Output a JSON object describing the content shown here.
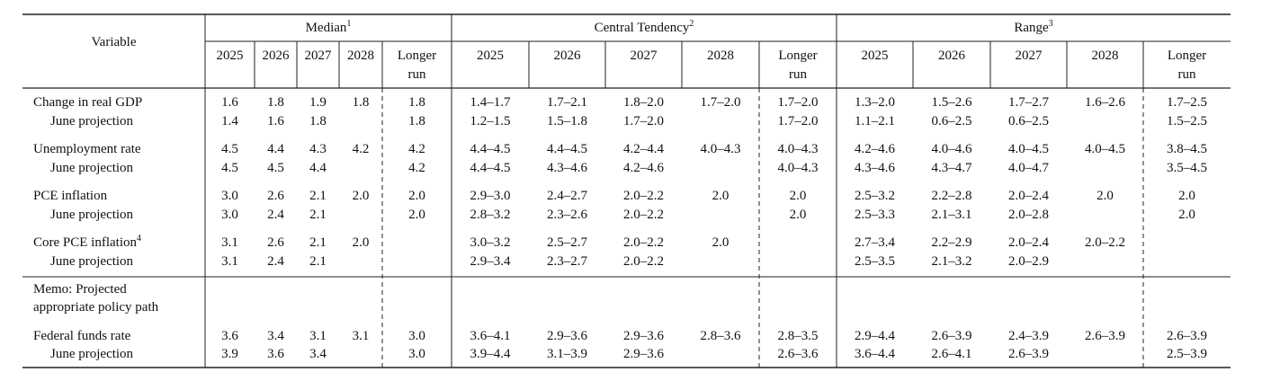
{
  "header": {
    "variable": "Variable",
    "groups": [
      {
        "label": "Median",
        "note": "1"
      },
      {
        "label": "Central Tendency",
        "note": "2"
      },
      {
        "label": "Range",
        "note": "3"
      }
    ],
    "years": [
      "2025",
      "2026",
      "2027",
      "2028"
    ],
    "longer_run": "Longer run"
  },
  "rows": [
    {
      "label": "Change in real GDP",
      "values": [
        "1.6",
        "1.8",
        "1.9",
        "1.8",
        "1.8",
        "1.4–1.7",
        "1.7–2.1",
        "1.8–2.0",
        "1.7–2.0",
        "1.7–2.0",
        "1.3–2.0",
        "1.5–2.6",
        "1.7–2.7",
        "1.6–2.6",
        "1.7–2.5"
      ]
    },
    {
      "label": "June projection",
      "values": [
        "1.4",
        "1.6",
        "1.8",
        null,
        "1.8",
        "1.2–1.5",
        "1.5–1.8",
        "1.7–2.0",
        null,
        "1.7–2.0",
        "1.1–2.1",
        "0.6–2.5",
        "0.6–2.5",
        null,
        "1.5–2.5"
      ]
    },
    {
      "label": "Unemployment rate",
      "values": [
        "4.5",
        "4.4",
        "4.3",
        "4.2",
        "4.2",
        "4.4–4.5",
        "4.4–4.5",
        "4.2–4.4",
        "4.0–4.3",
        "4.0–4.3",
        "4.2–4.6",
        "4.0–4.6",
        "4.0–4.5",
        "4.0–4.5",
        "3.8–4.5"
      ]
    },
    {
      "label": "June projection",
      "values": [
        "4.5",
        "4.5",
        "4.4",
        null,
        "4.2",
        "4.4–4.5",
        "4.3–4.6",
        "4.2–4.6",
        null,
        "4.0–4.3",
        "4.3–4.6",
        "4.3–4.7",
        "4.0–4.7",
        null,
        "3.5–4.5"
      ]
    },
    {
      "label": "PCE inflation",
      "values": [
        "3.0",
        "2.6",
        "2.1",
        "2.0",
        "2.0",
        "2.9–3.0",
        "2.4–2.7",
        "2.0–2.2",
        "2.0",
        "2.0",
        "2.5–3.2",
        "2.2–2.8",
        "2.0–2.4",
        "2.0",
        "2.0"
      ]
    },
    {
      "label": "June projection",
      "values": [
        "3.0",
        "2.4",
        "2.1",
        null,
        "2.0",
        "2.8–3.2",
        "2.3–2.6",
        "2.0–2.2",
        null,
        "2.0",
        "2.5–3.3",
        "2.1–3.1",
        "2.0–2.8",
        null,
        "2.0"
      ]
    },
    {
      "label": "Core PCE inflation",
      "note": "4",
      "values": [
        "3.1",
        "2.6",
        "2.1",
        "2.0",
        null,
        "3.0–3.2",
        "2.5–2.7",
        "2.0–2.2",
        "2.0",
        null,
        "2.7–3.4",
        "2.2–2.9",
        "2.0–2.4",
        "2.0–2.2",
        null
      ]
    },
    {
      "label": "June projection",
      "values": [
        "3.1",
        "2.4",
        "2.1",
        null,
        null,
        "2.9–3.4",
        "2.3–2.7",
        "2.0–2.2",
        null,
        null,
        "2.5–3.5",
        "2.1–3.2",
        "2.0–2.9",
        null,
        null
      ]
    },
    {
      "label": "Memo: Projected appropriate policy path",
      "values": []
    },
    {
      "label": "Federal funds rate",
      "values": [
        "3.6",
        "3.4",
        "3.1",
        "3.1",
        "3.0",
        "3.6–4.1",
        "2.9–3.6",
        "2.9–3.6",
        "2.8–3.6",
        "2.8–3.5",
        "2.9–4.4",
        "2.6–3.9",
        "2.4–3.9",
        "2.6–3.9",
        "2.6–3.9"
      ]
    },
    {
      "label": "June projection",
      "values": [
        "3.9",
        "3.6",
        "3.4",
        null,
        "3.0",
        "3.9–4.4",
        "3.1–3.9",
        "2.9–3.6",
        null,
        "2.6–3.6",
        "3.6–4.4",
        "2.6–4.1",
        "2.6–3.9",
        null,
        "2.5–3.9"
      ]
    }
  ]
}
